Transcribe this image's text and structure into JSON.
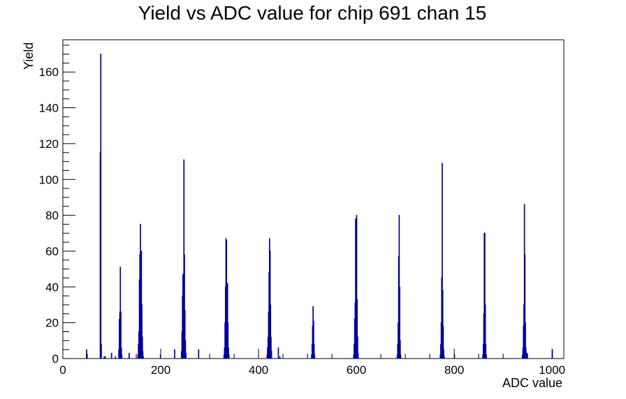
{
  "chart_data": {
    "type": "bar",
    "title": "Yield vs ADC value for chip 691 chan 15",
    "xlabel": "ADC value",
    "ylabel": "Yield",
    "xlim": [
      0,
      1024
    ],
    "ylim": [
      0,
      178
    ],
    "x_ticks": [
      0,
      200,
      400,
      600,
      800,
      1000
    ],
    "y_ticks": [
      0,
      20,
      40,
      60,
      80,
      100,
      120,
      140,
      160
    ],
    "grid": false,
    "legend": "none",
    "line_color": "#000099",
    "bins": [
      {
        "x": 48,
        "y": 5
      },
      {
        "x": 76,
        "y": 115
      },
      {
        "x": 77,
        "y": 170
      },
      {
        "x": 78,
        "y": 8
      },
      {
        "x": 84,
        "y": 1
      },
      {
        "x": 86,
        "y": 1
      },
      {
        "x": 99,
        "y": 3
      },
      {
        "x": 107,
        "y": 1
      },
      {
        "x": 114,
        "y": 5
      },
      {
        "x": 115,
        "y": 22
      },
      {
        "x": 116,
        "y": 26
      },
      {
        "x": 117,
        "y": 51
      },
      {
        "x": 118,
        "y": 26
      },
      {
        "x": 119,
        "y": 6
      },
      {
        "x": 120,
        "y": 2
      },
      {
        "x": 135,
        "y": 3
      },
      {
        "x": 153,
        "y": 2
      },
      {
        "x": 154,
        "y": 8
      },
      {
        "x": 155,
        "y": 15
      },
      {
        "x": 156,
        "y": 44
      },
      {
        "x": 157,
        "y": 58
      },
      {
        "x": 158,
        "y": 75
      },
      {
        "x": 159,
        "y": 44
      },
      {
        "x": 160,
        "y": 60
      },
      {
        "x": 161,
        "y": 30
      },
      {
        "x": 162,
        "y": 12
      },
      {
        "x": 163,
        "y": 4
      },
      {
        "x": 164,
        "y": 1
      },
      {
        "x": 199,
        "y": 2
      },
      {
        "x": 228,
        "y": 5
      },
      {
        "x": 242,
        "y": 4
      },
      {
        "x": 243,
        "y": 15
      },
      {
        "x": 244,
        "y": 35
      },
      {
        "x": 245,
        "y": 47
      },
      {
        "x": 246,
        "y": 43
      },
      {
        "x": 247,
        "y": 111
      },
      {
        "x": 248,
        "y": 58
      },
      {
        "x": 249,
        "y": 27
      },
      {
        "x": 250,
        "y": 10
      },
      {
        "x": 251,
        "y": 3
      },
      {
        "x": 277,
        "y": 5
      },
      {
        "x": 329,
        "y": 2
      },
      {
        "x": 330,
        "y": 6
      },
      {
        "x": 331,
        "y": 20
      },
      {
        "x": 332,
        "y": 40
      },
      {
        "x": 333,
        "y": 67
      },
      {
        "x": 334,
        "y": 66
      },
      {
        "x": 335,
        "y": 38
      },
      {
        "x": 336,
        "y": 42
      },
      {
        "x": 337,
        "y": 20
      },
      {
        "x": 338,
        "y": 6
      },
      {
        "x": 339,
        "y": 2
      },
      {
        "x": 417,
        "y": 2
      },
      {
        "x": 418,
        "y": 6
      },
      {
        "x": 419,
        "y": 12
      },
      {
        "x": 420,
        "y": 26
      },
      {
        "x": 421,
        "y": 48
      },
      {
        "x": 422,
        "y": 67
      },
      {
        "x": 423,
        "y": 60
      },
      {
        "x": 424,
        "y": 30
      },
      {
        "x": 425,
        "y": 12
      },
      {
        "x": 426,
        "y": 4
      },
      {
        "x": 440,
        "y": 6
      },
      {
        "x": 443,
        "y": 1
      },
      {
        "x": 508,
        "y": 2
      },
      {
        "x": 509,
        "y": 8
      },
      {
        "x": 510,
        "y": 18
      },
      {
        "x": 511,
        "y": 29
      },
      {
        "x": 512,
        "y": 21
      },
      {
        "x": 513,
        "y": 8
      },
      {
        "x": 514,
        "y": 2
      },
      {
        "x": 594,
        "y": 2
      },
      {
        "x": 595,
        "y": 8
      },
      {
        "x": 596,
        "y": 22
      },
      {
        "x": 597,
        "y": 31
      },
      {
        "x": 598,
        "y": 78
      },
      {
        "x": 599,
        "y": 22
      },
      {
        "x": 600,
        "y": 80
      },
      {
        "x": 601,
        "y": 33
      },
      {
        "x": 602,
        "y": 12
      },
      {
        "x": 603,
        "y": 3
      },
      {
        "x": 683,
        "y": 2
      },
      {
        "x": 684,
        "y": 8
      },
      {
        "x": 685,
        "y": 20
      },
      {
        "x": 686,
        "y": 57
      },
      {
        "x": 687,
        "y": 80
      },
      {
        "x": 688,
        "y": 40
      },
      {
        "x": 689,
        "y": 10
      },
      {
        "x": 690,
        "y": 2
      },
      {
        "x": 771,
        "y": 2
      },
      {
        "x": 772,
        "y": 8
      },
      {
        "x": 773,
        "y": 20
      },
      {
        "x": 774,
        "y": 45
      },
      {
        "x": 775,
        "y": 109
      },
      {
        "x": 776,
        "y": 38
      },
      {
        "x": 777,
        "y": 18
      },
      {
        "x": 778,
        "y": 5
      },
      {
        "x": 779,
        "y": 1
      },
      {
        "x": 800,
        "y": 2
      },
      {
        "x": 858,
        "y": 2
      },
      {
        "x": 859,
        "y": 8
      },
      {
        "x": 860,
        "y": 25
      },
      {
        "x": 861,
        "y": 70
      },
      {
        "x": 862,
        "y": 70
      },
      {
        "x": 863,
        "y": 30
      },
      {
        "x": 864,
        "y": 8
      },
      {
        "x": 865,
        "y": 2
      },
      {
        "x": 939,
        "y": 2
      },
      {
        "x": 940,
        "y": 6
      },
      {
        "x": 941,
        "y": 18
      },
      {
        "x": 942,
        "y": 30
      },
      {
        "x": 943,
        "y": 86
      },
      {
        "x": 944,
        "y": 58
      },
      {
        "x": 945,
        "y": 20
      },
      {
        "x": 946,
        "y": 6
      },
      {
        "x": 947,
        "y": 2
      },
      {
        "x": 948,
        "y": 3
      },
      {
        "x": 1000,
        "y": 5
      }
    ]
  }
}
